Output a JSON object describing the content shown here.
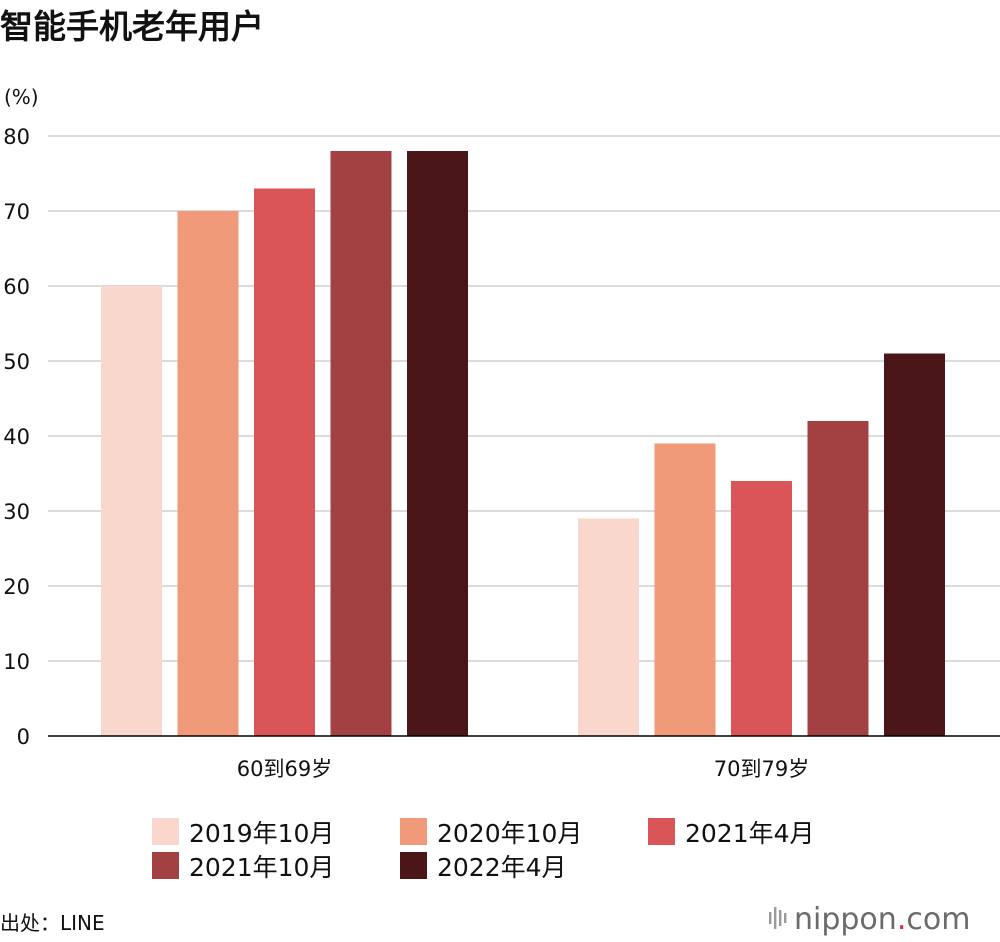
{
  "chart_data": {
    "type": "bar",
    "title": "智能手机老年用户",
    "ylabel": "(%)",
    "categories": [
      "60到69岁",
      "70到79岁"
    ],
    "series": [
      {
        "name": "2019年10月",
        "values": [
          60,
          29
        ],
        "color": "#f9d7cc"
      },
      {
        "name": "2020年10月",
        "values": [
          70,
          39
        ],
        "color": "#f19a7a"
      },
      {
        "name": "2021年4月",
        "values": [
          73,
          34
        ],
        "color": "#d95558"
      },
      {
        "name": "2021年10月",
        "values": [
          78,
          42
        ],
        "color": "#a34041"
      },
      {
        "name": "2022年4月",
        "values": [
          78,
          51
        ],
        "color": "#4a1618"
      }
    ],
    "ylim": [
      0,
      80
    ],
    "yticks": [
      0,
      10,
      20,
      30,
      40,
      50,
      60,
      70,
      80
    ],
    "grid": true,
    "legend": "bottom"
  },
  "footer": {
    "source": "出处：LINE",
    "brand_name": "nippon",
    "brand_dot": ".",
    "brand_suffix": "com",
    "brand_accent": "#d5313a"
  }
}
